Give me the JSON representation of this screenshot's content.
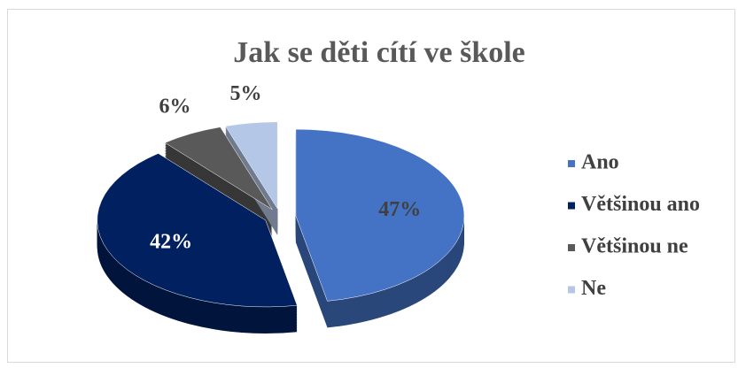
{
  "chart_data": {
    "type": "pie",
    "title": "Jak se děti cítí ve škole",
    "categories": [
      "Ano",
      "Většinou ano",
      "Většinou ne",
      "Ne"
    ],
    "values": [
      47,
      42,
      6,
      5
    ],
    "value_labels": [
      "47%",
      "42%",
      "6%",
      "5%"
    ],
    "colors": [
      "#4472c4",
      "#002060",
      "#595959",
      "#b4c7e7"
    ],
    "legend": "right"
  }
}
